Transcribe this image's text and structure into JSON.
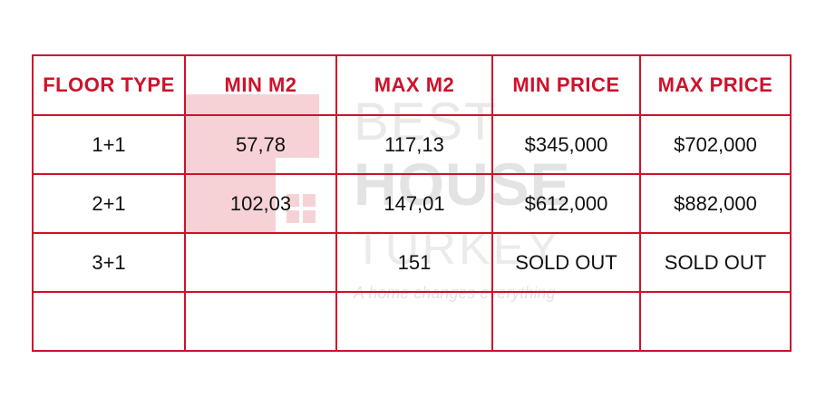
{
  "colors": {
    "accent_red": "#d0112b",
    "text": "#111111",
    "watermark_gray": "#e6e6e6",
    "watermark_pink": "#f6d2d6"
  },
  "watermark": {
    "line1": "BEST",
    "line2": "HOUSE",
    "line3": "TURKEY",
    "tagline": "A home changes everything",
    "icon": "house-logo-icon"
  },
  "table": {
    "headers": [
      "FLOOR TYPE",
      "MIN M2",
      "MAX M2",
      "MIN PRICE",
      "MAX PRICE"
    ],
    "rows": [
      [
        "1+1",
        "57,78",
        "117,13",
        "$345,000",
        "$702,000"
      ],
      [
        "2+1",
        "102,03",
        "147,01",
        "$612,000",
        "$882,000"
      ],
      [
        "3+1",
        "",
        "151",
        "SOLD OUT",
        "SOLD OUT"
      ],
      [
        "",
        "",
        "",
        "",
        ""
      ]
    ]
  }
}
